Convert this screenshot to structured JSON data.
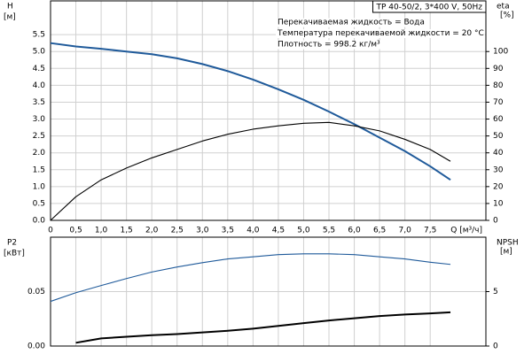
{
  "chart_data": [
    {
      "type": "line",
      "title": "TP 40-50/2, 3*400 V, 50Hz",
      "annotations": [
        "Перекачиваемая жидкость = Вода",
        "Температура перекачиваемой жидкости = 20 °C",
        "Плотность = 998.2 кг/м³"
      ],
      "ylabel": "H",
      "yunit": "[м]",
      "y2label": "eta",
      "y2unit": "[%]",
      "xlabel": "Q [м³/ч]",
      "x": [
        0,
        0.5,
        1,
        1.5,
        2,
        2.5,
        3,
        3.5,
        4,
        4.5,
        5,
        5.5,
        6,
        6.5,
        7,
        7.5,
        7.9
      ],
      "series": [
        {
          "color": "#1f5a9a",
          "axis": "y",
          "values": [
            5.25,
            5.15,
            5.08,
            5.0,
            4.92,
            4.8,
            4.63,
            4.42,
            4.17,
            3.88,
            3.57,
            3.22,
            2.85,
            2.45,
            2.05,
            1.6,
            1.2
          ]
        },
        {
          "color": "#000000",
          "axis": "y2",
          "values": [
            0,
            14,
            24,
            31,
            37,
            42,
            47,
            51,
            54,
            56,
            57.5,
            58,
            56,
            53,
            48,
            42,
            35
          ]
        }
      ],
      "xlim": [
        0,
        8.6
      ],
      "xticks": [
        0,
        {
          "value": 0.5,
          "label": "0,5"
        },
        {
          "value": 1,
          "label": "1,0"
        },
        {
          "value": 1.5,
          "label": "1,5"
        },
        {
          "value": 2,
          "label": "2,0"
        },
        {
          "value": 2.5,
          "label": "2,5"
        },
        {
          "value": 3,
          "label": "3,0"
        },
        {
          "value": 3.5,
          "label": "3,5"
        },
        {
          "value": 4,
          "label": "4,0"
        },
        {
          "value": 4.5,
          "label": "4,5"
        },
        {
          "value": 5,
          "label": "5,0"
        },
        {
          "value": 5.5,
          "label": "5,5"
        },
        {
          "value": 6,
          "label": "6,0"
        },
        {
          "value": 6.5,
          "label": "6,5"
        },
        {
          "value": 7,
          "label": "7,0"
        },
        {
          "value": 7.5,
          "label": "7,5"
        }
      ],
      "ylim": [
        0,
        6.5
      ],
      "yticks": [
        {
          "value": 0,
          "label": "0.0"
        },
        0.5,
        {
          "value": 1,
          "label": "1.0"
        },
        1.5,
        {
          "value": 2,
          "label": "2.0"
        },
        2.5,
        {
          "value": 3,
          "label": "3.0"
        },
        3.5,
        {
          "value": 4,
          "label": "4.0"
        },
        4.5,
        {
          "value": 5,
          "label": "5.0"
        },
        5.5
      ],
      "y2lim": [
        0,
        130
      ],
      "y2ticks": [
        0,
        10,
        20,
        30,
        40,
        50,
        60,
        70,
        80,
        90,
        100
      ],
      "grid": true
    },
    {
      "type": "line",
      "ylabel": "P2",
      "yunit": "[кВт]",
      "y2label": "NPSH",
      "y2unit": "[м]",
      "x": [
        0,
        0.5,
        1,
        1.5,
        2,
        2.5,
        3,
        3.5,
        4,
        4.5,
        5,
        5.5,
        6,
        6.5,
        7,
        7.5,
        7.9
      ],
      "series": [
        {
          "color": "#1f5a9a",
          "axis": "y",
          "values": [
            0.041,
            0.049,
            0.0556,
            0.062,
            0.068,
            0.0726,
            0.0766,
            0.08,
            0.082,
            0.084,
            0.0847,
            0.0847,
            0.084,
            0.082,
            0.08,
            0.077,
            0.075
          ]
        },
        {
          "color": "#000000",
          "axis": "y2",
          "values": [
            null,
            0.3,
            0.7,
            0.85,
            1.0,
            1.1,
            1.25,
            1.4,
            1.6,
            1.85,
            2.1,
            2.35,
            2.55,
            2.75,
            2.9,
            3.0,
            3.1
          ]
        }
      ],
      "xlim": [
        0,
        8.6
      ],
      "xticks": [
        0,
        0.5,
        1,
        1.5,
        2,
        2.5,
        3,
        3.5,
        4,
        4.5,
        5,
        5.5,
        6,
        6.5,
        7,
        7.5
      ],
      "show_xtick_labels": false,
      "ylim": [
        0,
        0.1
      ],
      "yticks": [
        {
          "value": 0,
          "label": "0.00"
        },
        0.05
      ],
      "y2lim": [
        0,
        10
      ],
      "y2ticks": [
        0,
        5
      ],
      "grid": true
    }
  ]
}
